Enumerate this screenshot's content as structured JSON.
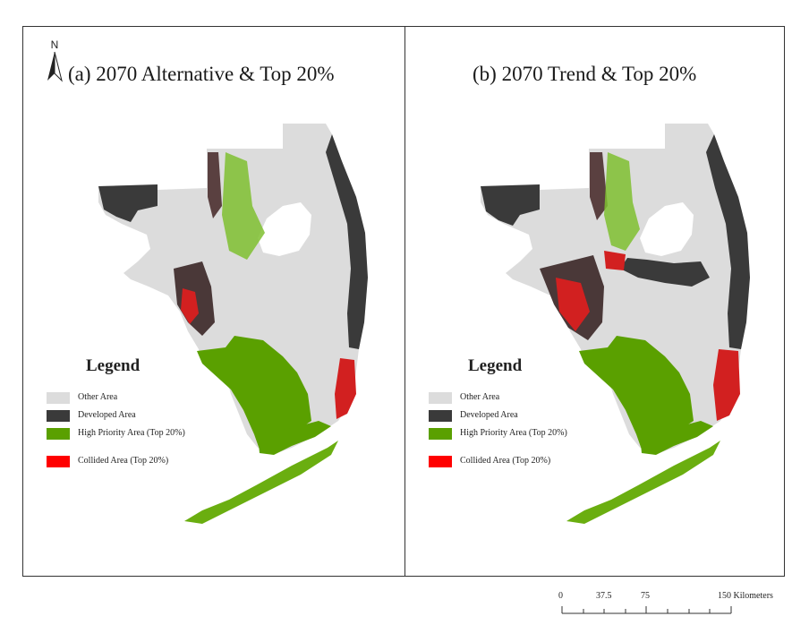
{
  "panels": [
    {
      "title": "(a) 2070 Alternative & Top 20%"
    },
    {
      "title": "(b) 2070 Trend & Top 20%"
    }
  ],
  "north_arrow": {
    "label": "N"
  },
  "legend": {
    "title": "Legend",
    "items": [
      {
        "label": "Other Area",
        "color": "#dcdcdc"
      },
      {
        "label": "Developed Area",
        "color": "#3a3a3a"
      },
      {
        "label": "High Priority Area (Top 20%)",
        "color": "#5aa000"
      },
      {
        "label": "Collided Area (Top 20%)",
        "color": "#ff0000"
      }
    ]
  },
  "scale_bar": {
    "ticks": [
      "0",
      "37.5",
      "75",
      "150 Kilometers"
    ]
  },
  "colors": {
    "other": "#dcdcdc",
    "developed": "#3a3a3a",
    "high_priority": "#5aa000",
    "collided": "#ff0000",
    "frame": "#333333"
  }
}
